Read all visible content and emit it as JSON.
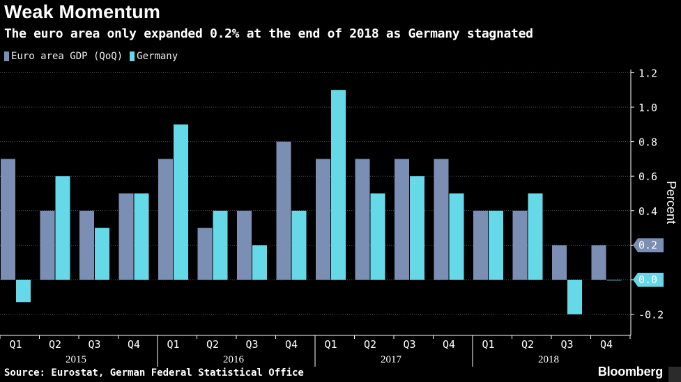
{
  "header": {
    "title": "Weak Momentum",
    "subtitle": "The euro area only expanded 0.2% at the end of 2018 as Germany stagnated"
  },
  "footer": {
    "source": "Source: Eurostat, German Federal Statistical Office",
    "brand": "Bloomberg"
  },
  "colors": {
    "euro": "#7b8fb5",
    "germany": "#66d9e8",
    "background": "#000000",
    "grid": "#555555"
  },
  "chart_data": {
    "type": "bar",
    "title": "Weak Momentum",
    "subtitle": "The euro area only expanded 0.2% at the end of 2018 as Germany stagnated",
    "ylabel": "Percent",
    "xlabel": "",
    "ylim": [
      -0.28,
      1.25
    ],
    "yticks": [
      -0.2,
      0.0,
      0.2,
      0.4,
      0.6,
      0.8,
      1.0,
      1.2
    ],
    "ytick_labels": [
      "-0.2",
      "0.0",
      "0.2",
      "0.4",
      "0.6",
      "0.8",
      "1.0",
      "1.2"
    ],
    "grid": true,
    "legend_position": "top-left",
    "categories": [
      "Q1",
      "Q2",
      "Q3",
      "Q4",
      "Q1",
      "Q2",
      "Q3",
      "Q4",
      "Q1",
      "Q2",
      "Q3",
      "Q4",
      "Q1",
      "Q2",
      "Q3",
      "Q4"
    ],
    "years": [
      {
        "label": "2015",
        "start": 0,
        "end": 3
      },
      {
        "label": "2016",
        "start": 4,
        "end": 7
      },
      {
        "label": "2017",
        "start": 8,
        "end": 11
      },
      {
        "label": "2018",
        "start": 12,
        "end": 15
      }
    ],
    "series": [
      {
        "name": "Euro area GDP (QoQ)",
        "values": [
          0.7,
          0.4,
          0.4,
          0.5,
          0.7,
          0.3,
          0.4,
          0.8,
          0.7,
          0.7,
          0.7,
          0.7,
          0.4,
          0.4,
          0.2,
          0.2
        ]
      },
      {
        "name": "Germany",
        "values": [
          -0.13,
          0.6,
          0.3,
          0.5,
          0.9,
          0.4,
          0.2,
          0.4,
          1.1,
          0.5,
          0.6,
          0.5,
          0.4,
          0.5,
          -0.2,
          0.0
        ]
      }
    ],
    "annotations": [
      {
        "series": "Euro area GDP (QoQ)",
        "label": "0.2",
        "value": 0.2
      },
      {
        "series": "Germany",
        "label": "0.0",
        "value": 0.0
      }
    ]
  }
}
